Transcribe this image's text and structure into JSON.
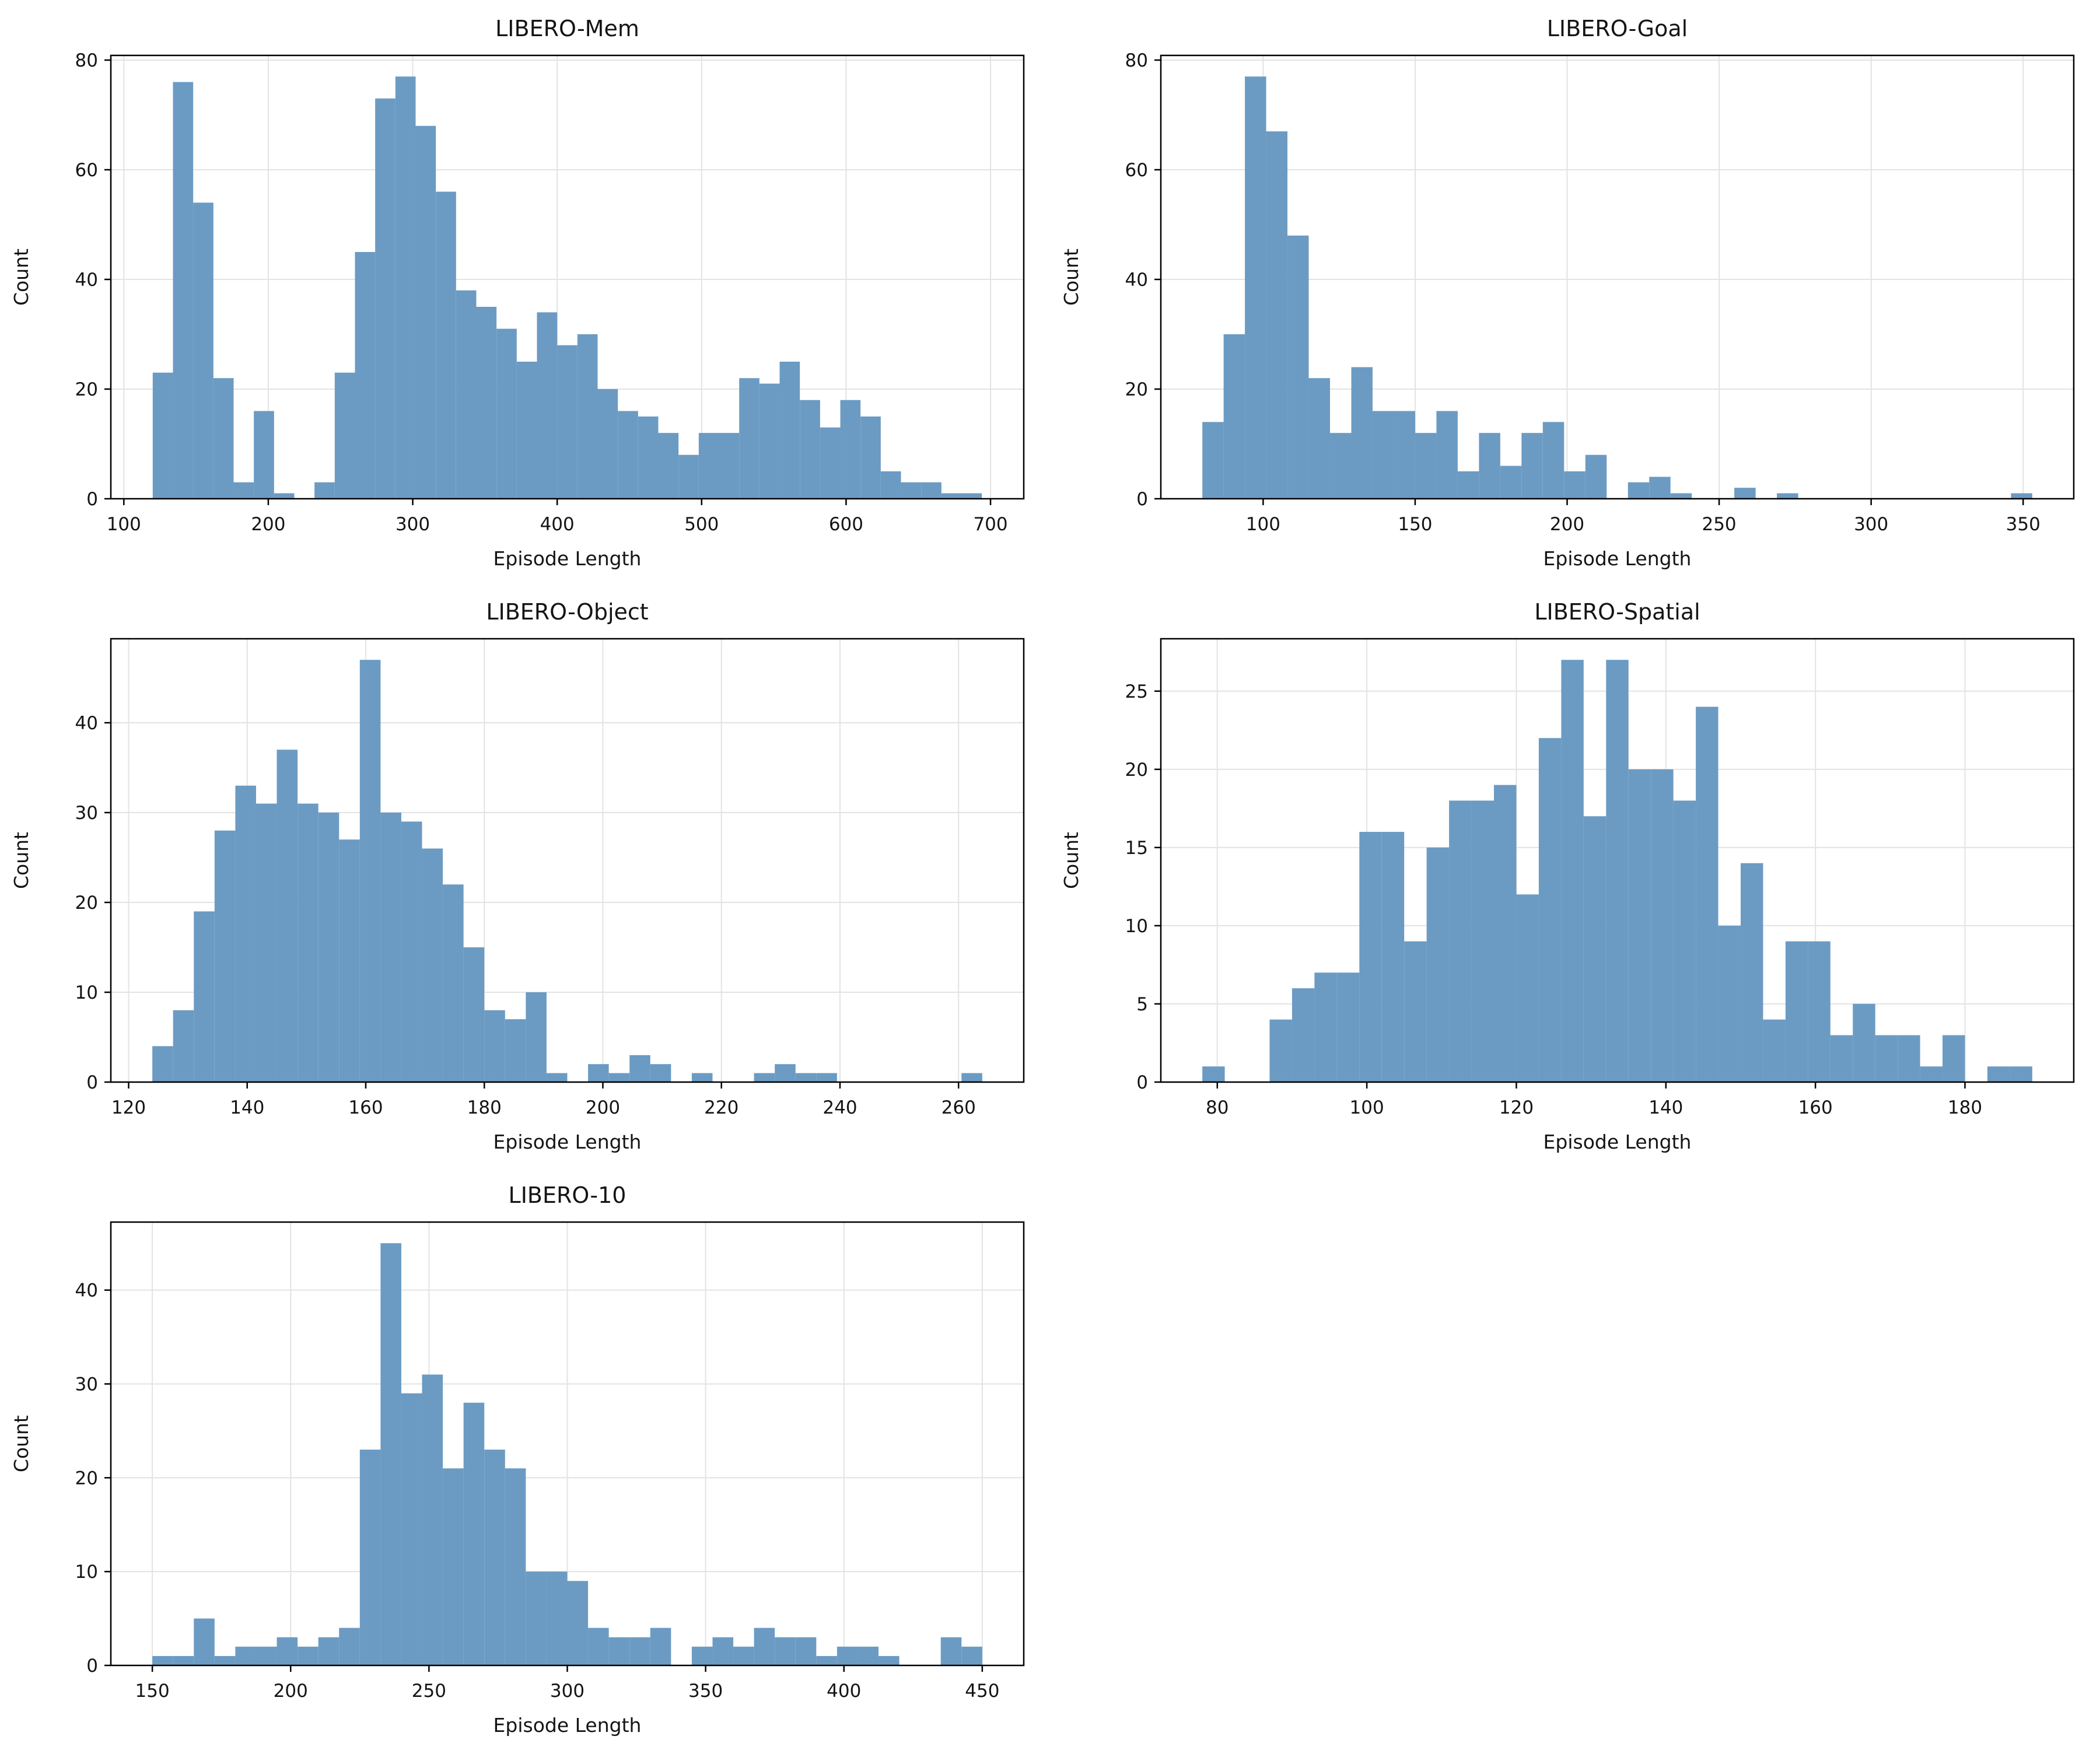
{
  "figure": {
    "background": "#ffffff",
    "bar_color": "#6B9BC3",
    "grid_color": "#e3e3e3",
    "spine_color": "#000000",
    "text_color": "#141414"
  },
  "chart_data": [
    {
      "type": "bar",
      "title": "LIBERO-Mem",
      "xlabel": "Episode Length",
      "ylabel": "Count",
      "bin_start": 120,
      "bin_width": 14,
      "counts": [
        23,
        76,
        54,
        22,
        3,
        16,
        1,
        0,
        3,
        23,
        45,
        73,
        77,
        68,
        56,
        38,
        35,
        31,
        25,
        34,
        28,
        30,
        20,
        16,
        15,
        12,
        8,
        12,
        12,
        22,
        21,
        25,
        18,
        13,
        18,
        15,
        5,
        3,
        3,
        1,
        1
      ],
      "xlim": [
        91,
        723
      ],
      "ylim": [
        0,
        80.85
      ],
      "xticks": [
        100,
        200,
        300,
        400,
        500,
        600,
        700
      ],
      "yticks": [
        0,
        20,
        40,
        60,
        80
      ],
      "grid": true,
      "legend": "none"
    },
    {
      "type": "bar",
      "title": "LIBERO-Goal",
      "xlabel": "Episode Length",
      "ylabel": "Count",
      "bin_start": 80,
      "bin_width": 7,
      "counts": [
        14,
        30,
        77,
        67,
        48,
        22,
        12,
        24,
        16,
        16,
        12,
        16,
        5,
        12,
        6,
        12,
        14,
        5,
        8,
        0,
        3,
        4,
        1,
        0,
        0,
        2,
        0,
        1,
        0,
        0,
        0,
        0,
        0,
        0,
        0,
        0,
        0,
        0,
        1
      ],
      "xlim": [
        66.35,
        366.65
      ],
      "ylim": [
        0,
        80.85
      ],
      "xticks": [
        100,
        150,
        200,
        250,
        300,
        350
      ],
      "yticks": [
        0,
        20,
        40,
        60,
        80
      ],
      "grid": true,
      "legend": "none"
    },
    {
      "type": "bar",
      "title": "LIBERO-Object",
      "xlabel": "Episode Length",
      "ylabel": "Count",
      "bin_start": 124,
      "bin_width": 3.5,
      "counts": [
        4,
        8,
        19,
        28,
        33,
        31,
        37,
        31,
        30,
        27,
        47,
        30,
        29,
        26,
        22,
        15,
        8,
        7,
        10,
        1,
        0,
        2,
        1,
        3,
        2,
        0,
        1,
        0,
        0,
        1,
        2,
        1,
        1,
        0,
        0,
        0,
        0,
        0,
        0,
        1
      ],
      "xlim": [
        117,
        271
      ],
      "ylim": [
        0,
        49.35
      ],
      "xticks": [
        120,
        140,
        160,
        180,
        200,
        220,
        240,
        260
      ],
      "yticks": [
        0,
        10,
        20,
        30,
        40
      ],
      "grid": true,
      "legend": "none"
    },
    {
      "type": "bar",
      "title": "LIBERO-Spatial",
      "xlabel": "Episode Length",
      "ylabel": "Count",
      "bin_start": 78,
      "bin_width": 3,
      "counts": [
        1,
        0,
        0,
        4,
        6,
        7,
        7,
        16,
        16,
        9,
        15,
        18,
        18,
        19,
        12,
        22,
        27,
        17,
        27,
        20,
        20,
        18,
        24,
        10,
        14,
        4,
        9,
        9,
        3,
        5,
        3,
        3,
        1,
        3,
        0,
        1,
        1
      ],
      "xlim": [
        72.45,
        194.55
      ],
      "ylim": [
        0,
        28.35
      ],
      "xticks": [
        80,
        100,
        120,
        140,
        160,
        180
      ],
      "yticks": [
        0,
        5,
        10,
        15,
        20,
        25
      ],
      "grid": true,
      "legend": "none"
    },
    {
      "type": "bar",
      "title": "LIBERO-10",
      "xlabel": "Episode Length",
      "ylabel": "Count",
      "bin_start": 150,
      "bin_width": 7.5,
      "counts": [
        1,
        1,
        5,
        1,
        2,
        2,
        3,
        2,
        3,
        4,
        23,
        45,
        29,
        31,
        21,
        28,
        23,
        21,
        10,
        10,
        9,
        4,
        3,
        3,
        4,
        0,
        2,
        3,
        2,
        4,
        3,
        3,
        1,
        2,
        2,
        1,
        0,
        0,
        3,
        2
      ],
      "xlim": [
        135,
        465
      ],
      "ylim": [
        0,
        47.25
      ],
      "xticks": [
        150,
        200,
        250,
        300,
        350,
        400,
        450
      ],
      "yticks": [
        0,
        10,
        20,
        30,
        40
      ],
      "grid": true,
      "legend": "none"
    }
  ]
}
